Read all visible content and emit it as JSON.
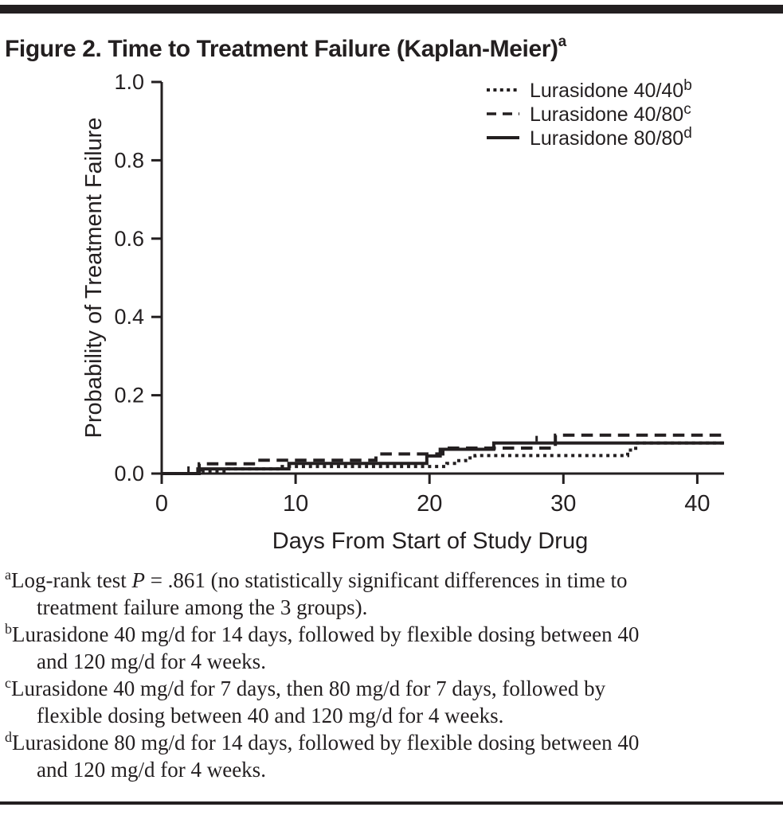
{
  "figure": {
    "title": "Figure 2. Time to Treatment Failure (Kaplan-Meier)",
    "title_superscript": "a"
  },
  "chart_data": {
    "type": "line",
    "subtype": "kaplan-meier-step",
    "xlabel": "Days From Start of Study Drug",
    "ylabel": "Probability of Treatment Failure",
    "xlim": [
      0,
      42
    ],
    "ylim": [
      0.0,
      1.0
    ],
    "x_ticks": [
      0,
      10,
      20,
      30,
      40
    ],
    "y_ticks": [
      0.0,
      0.2,
      0.4,
      0.6,
      0.8,
      1.0
    ],
    "grid": false,
    "legend_position": "top-right-inside",
    "series": [
      {
        "name": "Lurasidone 40/40",
        "superscript": "b",
        "style": "dotted",
        "points": [
          [
            0,
            0
          ],
          [
            3,
            0.006
          ],
          [
            5,
            0.012
          ],
          [
            9,
            0.018
          ],
          [
            21.3,
            0.026
          ],
          [
            22,
            0.033
          ],
          [
            22.7,
            0.04
          ],
          [
            23.4,
            0.046
          ],
          [
            34.8,
            0.06
          ],
          [
            35.4,
            0.078
          ],
          [
            42,
            0.078
          ]
        ],
        "censor_days": []
      },
      {
        "name": "Lurasidone 40/80",
        "superscript": "c",
        "style": "dashed",
        "points": [
          [
            0,
            0
          ],
          [
            2.8,
            0.025
          ],
          [
            7,
            0.034
          ],
          [
            16,
            0.05
          ],
          [
            21,
            0.065
          ],
          [
            29.4,
            0.098
          ],
          [
            42,
            0.098
          ]
        ],
        "censor_days": []
      },
      {
        "name": "Lurasidone 80/80",
        "superscript": "d",
        "style": "solid",
        "points": [
          [
            0,
            0
          ],
          [
            2.7,
            0.012
          ],
          [
            9.5,
            0.026
          ],
          [
            19.8,
            0.045
          ],
          [
            20.8,
            0.062
          ],
          [
            24.8,
            0.078
          ],
          [
            42,
            0.078
          ]
        ],
        "censor_days": [
          2,
          28
        ]
      }
    ]
  },
  "footnotes": [
    {
      "marker": "a",
      "lines": [
        [
          {
            "t": "Log-rank test "
          },
          {
            "t": "P",
            "i": true
          },
          {
            "t": " = .861 (no statistically significant differences in time to"
          }
        ],
        [
          {
            "t": "treatment failure among the 3 groups)."
          }
        ]
      ]
    },
    {
      "marker": "b",
      "lines": [
        [
          {
            "t": "Lurasidone 40 mg/d for 14 days, followed by flexible dosing between 40"
          }
        ],
        [
          {
            "t": "and 120 mg/d for 4 weeks."
          }
        ]
      ]
    },
    {
      "marker": "c",
      "lines": [
        [
          {
            "t": "Lurasidone 40 mg/d for 7 days, then 80 mg/d for 7 days, followed by"
          }
        ],
        [
          {
            "t": "flexible dosing between 40 and 120 mg/d for 4 weeks."
          }
        ]
      ]
    },
    {
      "marker": "d",
      "lines": [
        [
          {
            "t": "Lurasidone 80 mg/d for 14 days, followed by flexible dosing between 40"
          }
        ],
        [
          {
            "t": "and 120 mg/d for 4 weeks."
          }
        ]
      ]
    }
  ],
  "colors": {
    "ink": "#231f20",
    "background": "#ffffff"
  }
}
